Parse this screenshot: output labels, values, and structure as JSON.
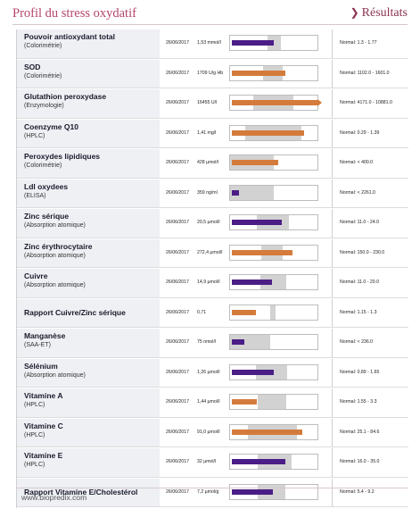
{
  "header": {
    "title": "Profil du stress oxydatif",
    "results_label": "Résultats"
  },
  "footer": {
    "url": "www.biopredix.com"
  },
  "colors": {
    "purple": "#4b1d86",
    "orange": "#d47b3c",
    "normal_zone": "#d2d2d2"
  },
  "rows": [
    {
      "name": "Pouvoir antioxydant total",
      "method": "(Colorimétrie)",
      "date": "26/06/2017",
      "value": "1,53 mmol/l",
      "normal": "Normal: 1.3 - 1.77",
      "status": "normal",
      "level": 0.49,
      "norm_start": 0.43,
      "norm_end": 0.58,
      "overflow": false
    },
    {
      "name": "SOD",
      "method": "(Colorimétrie)",
      "date": "26/06/2017",
      "value": "1709 U/g Hb",
      "normal": "Normal: 1102.0 - 1601.0",
      "status": "abnormal",
      "level": 0.63,
      "norm_start": 0.38,
      "norm_end": 0.6,
      "overflow": false
    },
    {
      "name": "Glutathion peroxydase",
      "method": "(Enzymologie)",
      "date": "26/06/2017",
      "value": "16455 U/l",
      "normal": "Normal: 4171.0 - 10881.0",
      "status": "abnormal",
      "level": 1.0,
      "norm_start": 0.27,
      "norm_end": 0.72,
      "overflow": true
    },
    {
      "name": "Coenzyme Q10",
      "method": "(HPLC)",
      "date": "26/06/2017",
      "value": "1,41 mg/l",
      "normal": "Normal: 0.29 - 1.39",
      "status": "abnormal",
      "level": 0.84,
      "norm_start": 0.17,
      "norm_end": 0.82,
      "overflow": false
    },
    {
      "name": "Peroxydes lipidiques",
      "method": "(Colorimétrie)",
      "date": "26/06/2017",
      "value": "428 µmol/l",
      "normal": "Normal: < 400.0",
      "status": "abnormal",
      "level": 0.54,
      "norm_start": 0.0,
      "norm_end": 0.5,
      "overflow": false
    },
    {
      "name": "Ldl oxydees",
      "method": "(ELISA)",
      "date": "26/06/2017",
      "value": "359 ng/ml",
      "normal": "Normal: < 2261.0",
      "status": "normal",
      "level": 0.08,
      "norm_start": 0.0,
      "norm_end": 0.5,
      "overflow": false
    },
    {
      "name": "Zinc sérique",
      "method": "(Absorption atomique)",
      "date": "26/06/2017",
      "value": "20,5 µmol/l",
      "normal": "Normal: 11.0 - 24.0",
      "status": "normal",
      "level": 0.58,
      "norm_start": 0.31,
      "norm_end": 0.67,
      "overflow": false
    },
    {
      "name": "Zinc érythrocytaire",
      "method": "(Absorption atomique)",
      "date": "26/06/2017",
      "value": "272,4 µmol/l",
      "normal": "Normal: 150.0 - 230.0",
      "status": "abnormal",
      "level": 0.71,
      "norm_start": 0.36,
      "norm_end": 0.6,
      "overflow": false
    },
    {
      "name": "Cuivre",
      "method": "(Absorption atomique)",
      "date": "26/06/2017",
      "value": "14,9 µmol/l",
      "normal": "Normal: 11.0 - 20.0",
      "status": "normal",
      "level": 0.47,
      "norm_start": 0.35,
      "norm_end": 0.64,
      "overflow": false
    },
    {
      "name": "Rapport Cuivre/Zinc sérique",
      "method": "",
      "date": "26/06/2017",
      "value": "0,71",
      "normal": "Normal: 1.15 - 1.3",
      "status": "abnormal",
      "level": 0.28,
      "norm_start": 0.46,
      "norm_end": 0.52,
      "overflow": false
    },
    {
      "name": "Manganèse",
      "method": "(SAA-ET)",
      "date": "26/06/2017",
      "value": "75 nmol/l",
      "normal": "Normal: < 236.0",
      "status": "normal",
      "level": 0.15,
      "norm_start": 0.0,
      "norm_end": 0.46,
      "overflow": false
    },
    {
      "name": "Sélénium",
      "method": "(Absorption atomique)",
      "date": "26/06/2017",
      "value": "1,26 µmol/l",
      "normal": "Normal: 0.89 - 1.65",
      "status": "normal",
      "level": 0.49,
      "norm_start": 0.3,
      "norm_end": 0.65,
      "overflow": false
    },
    {
      "name": "Vitamine A",
      "method": "(HPLC)",
      "date": "26/06/2017",
      "value": "1,44 µmol/l",
      "normal": "Normal: 1.55 - 3.3",
      "status": "abnormal",
      "level": 0.29,
      "norm_start": 0.32,
      "norm_end": 0.64,
      "overflow": false
    },
    {
      "name": "Vitamine C",
      "method": "(HPLC)",
      "date": "26/06/2017",
      "value": "91,0 µmol/l",
      "normal": "Normal: 25.1 - 84.6",
      "status": "abnormal",
      "level": 0.82,
      "norm_start": 0.2,
      "norm_end": 0.77,
      "overflow": false
    },
    {
      "name": "Vitamine E",
      "method": "(HPLC)",
      "date": "26/06/2017",
      "value": "32 µmol/l",
      "normal": "Normal: 16.0 - 35.0",
      "status": "normal",
      "level": 0.63,
      "norm_start": 0.32,
      "norm_end": 0.7,
      "overflow": false
    },
    {
      "name": "Rapport Vitamine E/Cholestérol",
      "method": "",
      "date": "26/06/2017",
      "value": "7,2 µmol/g",
      "normal": "Normal: 5.4 - 9.2",
      "status": "normal",
      "level": 0.48,
      "norm_start": 0.32,
      "norm_end": 0.63,
      "overflow": false
    }
  ]
}
